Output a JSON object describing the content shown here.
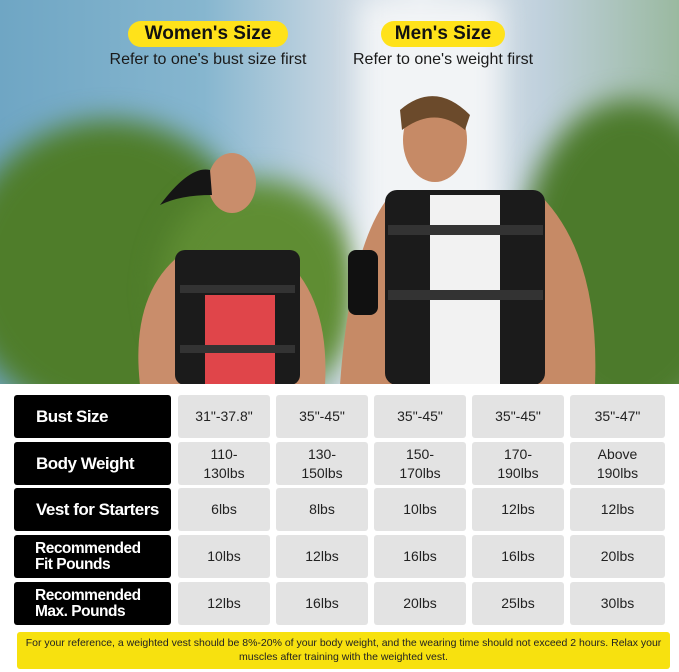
{
  "header": {
    "women_badge": "Women's Size",
    "women_sub": "Refer to one's bust size first",
    "men_badge": "Men's Size",
    "men_sub": "Refer to one's weight first",
    "accent_color": "#ffe21a"
  },
  "table": {
    "rows": [
      {
        "label": "Bust Size",
        "values": [
          "31\"-37.8\"",
          "35\"-45\"",
          "35\"-45\"",
          "35\"-45\"",
          "35\"-47\""
        ]
      },
      {
        "label": "Body Weight",
        "values": [
          "110-\n130lbs",
          "130-\n150lbs",
          "150-\n170lbs",
          "170-\n190lbs",
          "Above\n190lbs"
        ]
      },
      {
        "label": "Vest for Starters",
        "values": [
          "6lbs",
          "8lbs",
          "10lbs",
          "12lbs",
          "12lbs"
        ]
      },
      {
        "label": "Recommended\nFit Pounds",
        "values": [
          "10lbs",
          "12lbs",
          "16lbs",
          "16lbs",
          "20lbs"
        ]
      },
      {
        "label": "Recommended\nMax. Pounds",
        "values": [
          "12lbs",
          "16lbs",
          "20lbs",
          "25lbs",
          "30lbs"
        ]
      }
    ]
  },
  "note": "For your reference, a weighted vest should be 8%-20% of your body weight, and the wearing time should not exceed 2 hours. Relax your muscles after training with the weighted vest."
}
